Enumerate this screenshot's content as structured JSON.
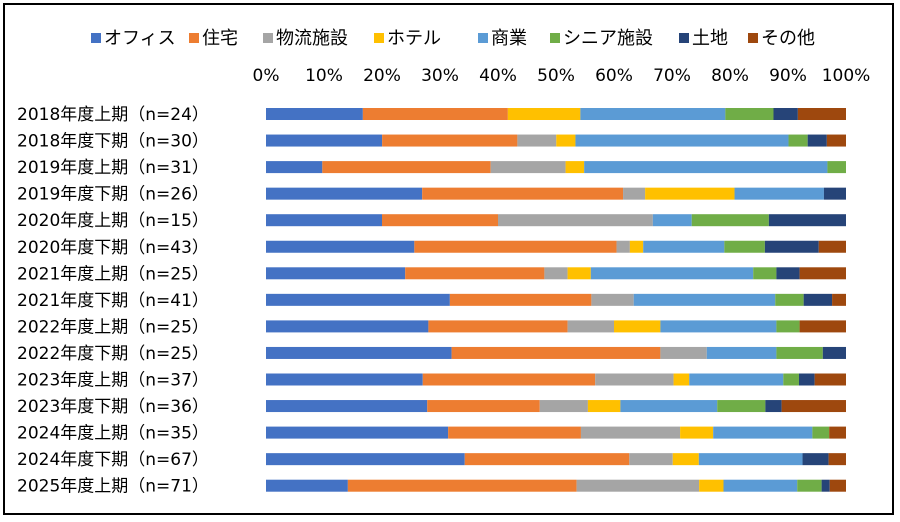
{
  "chart_data": {
    "type": "bar",
    "orientation": "horizontal",
    "stacked": "percent",
    "title": "",
    "xlabel": "",
    "ylabel": "",
    "xlim": [
      0,
      100
    ],
    "x_ticks": [
      "0%",
      "10%",
      "20%",
      "30%",
      "40%",
      "50%",
      "60%",
      "70%",
      "80%",
      "90%",
      "100%"
    ],
    "legend_position": "top",
    "grid": false,
    "categories": [
      "2018年度上期（n=24）",
      "2018年度下期（n=30）",
      "2019年度上期（n=31）",
      "2019年度下期（n=26）",
      "2020年度上期（n=15）",
      "2020年度下期（n=43）",
      "2021年度上期（n=25）",
      "2021年度下期（n=41）",
      "2022年度上期（n=25）",
      "2022年度下期（n=25）",
      "2023年度上期（n=37）",
      "2023年度下期（n=36）",
      "2024年度上期（n=35）",
      "2024年度下期（n=67）",
      "2025年度上期（n=71）"
    ],
    "series": [
      {
        "name": "オフィス",
        "color": "#4472C4",
        "values": [
          16.7,
          20.0,
          9.7,
          26.9,
          20.0,
          25.6,
          24.0,
          31.7,
          28.0,
          32.0,
          27.0,
          27.8,
          31.4,
          34.3,
          14.1
        ]
      },
      {
        "name": "住宅",
        "color": "#ED7D31",
        "values": [
          25.0,
          23.3,
          29.0,
          34.6,
          20.0,
          34.9,
          24.0,
          24.4,
          24.0,
          36.0,
          29.7,
          19.4,
          22.9,
          28.4,
          39.4
        ]
      },
      {
        "name": "物流施設",
        "color": "#A5A5A5",
        "values": [
          0.0,
          6.7,
          12.9,
          3.8,
          26.7,
          2.3,
          4.0,
          7.3,
          8.0,
          8.0,
          13.5,
          8.3,
          17.1,
          7.5,
          21.1
        ]
      },
      {
        "name": "ホテル",
        "color": "#FFC000",
        "values": [
          12.5,
          3.3,
          3.2,
          15.4,
          0.0,
          2.3,
          4.0,
          0.0,
          8.0,
          0.0,
          2.7,
          5.6,
          5.7,
          4.5,
          4.2
        ]
      },
      {
        "name": "商業",
        "color": "#5B9BD5",
        "values": [
          25.0,
          36.7,
          41.9,
          15.4,
          6.7,
          14.0,
          28.0,
          24.4,
          20.0,
          12.0,
          16.2,
          16.7,
          17.1,
          17.9,
          12.7
        ]
      },
      {
        "name": "シニア施設",
        "color": "#70AD47",
        "values": [
          8.3,
          3.3,
          3.2,
          0.0,
          13.3,
          7.0,
          4.0,
          4.9,
          4.0,
          8.0,
          2.7,
          8.3,
          2.9,
          0.0,
          4.2
        ]
      },
      {
        "name": "土地",
        "color": "#264478",
        "values": [
          4.2,
          3.3,
          0.0,
          3.8,
          13.3,
          9.3,
          4.0,
          4.9,
          0.0,
          4.0,
          2.7,
          2.8,
          0.0,
          4.5,
          1.4
        ]
      },
      {
        "name": "その他",
        "color": "#9E480E",
        "values": [
          8.3,
          3.3,
          0.0,
          0.0,
          0.0,
          4.7,
          8.0,
          2.4,
          8.0,
          0.0,
          5.4,
          11.1,
          2.9,
          3.0,
          2.8
        ]
      }
    ]
  }
}
